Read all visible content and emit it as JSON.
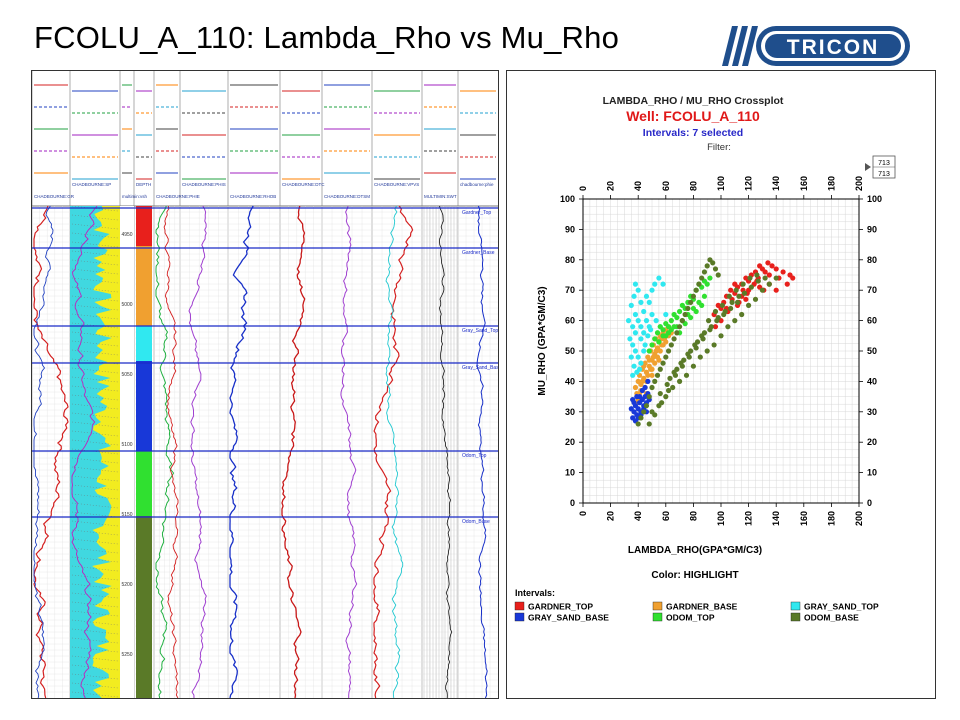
{
  "slide": {
    "title": "FCOLU_A_110: Lambda_Rho vs Mu_Rho",
    "logo_text": "TRICON"
  },
  "well_log": {
    "track_headers": [
      "CHADBOURNE:GR",
      "CHADBOURNE:SP",
      "multimin:vsh",
      "DEPTH",
      "CHADBOURNE:PHIE",
      "CHADBOURNE:PHIS",
      "CHADBOURNE:RHOB",
      "CHADBOURNE:DTC",
      "CHADBOURNE:DTSM",
      "CHADBOURNE:VPVS",
      "MULTIMIN:SWT",
      "chadbourne:phie"
    ],
    "depth_labels": [
      "4950",
      "5000",
      "5050",
      "5100",
      "5150",
      "5200",
      "5250"
    ],
    "tops": [
      {
        "name": "Gardner_Top"
      },
      {
        "name": "Gardner_Base"
      },
      {
        "name": "Gray_Sand_Top"
      },
      {
        "name": "Gray_Sand_Base"
      },
      {
        "name": "Odom_Top"
      },
      {
        "name": "Odom_Base"
      }
    ]
  },
  "crossplot": {
    "header_title": "LAMBDA_RHO / MU_RHO Crossplot",
    "well_label": "Well: FCOLU_A_110",
    "intervals_label": "Intervals: 7 selected",
    "filter_label": "Filter:",
    "zone_box": [
      "713",
      "713"
    ],
    "color_label": "Color: HIGHLIGHT",
    "legend_title": "Intervals:",
    "colors": {
      "GARDNER_TOP": "#e8201c",
      "GARDNER_BASE": "#f0a030",
      "GRAY_SAND_TOP": "#30e8f0",
      "GRAY_SAND_BASE": "#1838d8",
      "ODOM_TOP": "#30e030",
      "ODOM_BASE": "#5a7a28",
      "title_red": "#e01818",
      "intervals_blue": "#2828c8"
    }
  },
  "chart_data": {
    "type": "scatter",
    "title": "LAMBDA_RHO / MU_RHO Crossplot",
    "xlabel": "LAMBDA_RHO(GPA*GM/C3)",
    "ylabel": "MU_RHO (GPA*GM/C3)",
    "xlim": [
      0,
      200
    ],
    "ylim": [
      0,
      100
    ],
    "x_ticks": [
      0,
      20,
      40,
      60,
      80,
      100,
      120,
      140,
      160,
      180,
      200
    ],
    "y_ticks": [
      0,
      10,
      20,
      30,
      40,
      50,
      60,
      70,
      80,
      90,
      100
    ],
    "grid": true,
    "legend_position": "bottom",
    "series": [
      {
        "name": "GARDNER_TOP",
        "points": [
          [
            95,
            62
          ],
          [
            98,
            65
          ],
          [
            100,
            64
          ],
          [
            102,
            66
          ],
          [
            104,
            68
          ],
          [
            105,
            63
          ],
          [
            107,
            70
          ],
          [
            108,
            67
          ],
          [
            110,
            69
          ],
          [
            112,
            71
          ],
          [
            113,
            66
          ],
          [
            115,
            72
          ],
          [
            116,
            70
          ],
          [
            118,
            74
          ],
          [
            119,
            69
          ],
          [
            120,
            73
          ],
          [
            122,
            75
          ],
          [
            124,
            72
          ],
          [
            125,
            76
          ],
          [
            127,
            74
          ],
          [
            128,
            78
          ],
          [
            130,
            77
          ],
          [
            132,
            76
          ],
          [
            134,
            79
          ],
          [
            135,
            75
          ],
          [
            137,
            78
          ],
          [
            140,
            77
          ],
          [
            142,
            74
          ],
          [
            145,
            76
          ],
          [
            148,
            72
          ],
          [
            150,
            75
          ],
          [
            152,
            74
          ],
          [
            110,
            72
          ],
          [
            115,
            68
          ],
          [
            120,
            70
          ],
          [
            126,
            73
          ],
          [
            131,
            70
          ],
          [
            104,
            64
          ],
          [
            100,
            60
          ],
          [
            96,
            58
          ],
          [
            112,
            65
          ],
          [
            118,
            67
          ],
          [
            135,
            72
          ],
          [
            140,
            70
          ],
          [
            128,
            71
          ]
        ]
      },
      {
        "name": "GARDNER_BASE",
        "points": [
          [
            38,
            38
          ],
          [
            39,
            36
          ],
          [
            40,
            40
          ],
          [
            41,
            42
          ],
          [
            42,
            37
          ],
          [
            43,
            44
          ],
          [
            44,
            41
          ],
          [
            45,
            46
          ],
          [
            46,
            43
          ],
          [
            47,
            48
          ],
          [
            48,
            45
          ],
          [
            49,
            50
          ],
          [
            50,
            47
          ],
          [
            51,
            52
          ],
          [
            52,
            49
          ],
          [
            53,
            54
          ],
          [
            54,
            51
          ],
          [
            55,
            53
          ],
          [
            56,
            55
          ],
          [
            57,
            52
          ],
          [
            58,
            56
          ],
          [
            59,
            54
          ],
          [
            60,
            57
          ],
          [
            61,
            55
          ],
          [
            62,
            58
          ],
          [
            40,
            34
          ],
          [
            42,
            39
          ],
          [
            44,
            45
          ],
          [
            46,
            40
          ],
          [
            48,
            47
          ],
          [
            50,
            44
          ],
          [
            52,
            46
          ],
          [
            54,
            48
          ],
          [
            56,
            50
          ],
          [
            58,
            52
          ],
          [
            45,
            38
          ],
          [
            47,
            42
          ],
          [
            49,
            44
          ],
          [
            51,
            48
          ],
          [
            53,
            50
          ],
          [
            55,
            47
          ],
          [
            57,
            54
          ],
          [
            41,
            36
          ],
          [
            43,
            40
          ],
          [
            39,
            33
          ],
          [
            60,
            53
          ],
          [
            62,
            55
          ],
          [
            64,
            56
          ],
          [
            50,
            42
          ],
          [
            46,
            36
          ]
        ]
      },
      {
        "name": "GRAY_SAND_TOP",
        "points": [
          [
            35,
            65
          ],
          [
            37,
            68
          ],
          [
            38,
            72
          ],
          [
            40,
            70
          ],
          [
            42,
            66
          ],
          [
            44,
            63
          ],
          [
            46,
            68
          ],
          [
            48,
            66
          ],
          [
            50,
            70
          ],
          [
            52,
            72
          ],
          [
            55,
            74
          ],
          [
            58,
            72
          ],
          [
            36,
            58
          ],
          [
            38,
            62
          ],
          [
            40,
            60
          ],
          [
            42,
            58
          ],
          [
            44,
            56
          ],
          [
            46,
            60
          ],
          [
            48,
            58
          ],
          [
            50,
            62
          ],
          [
            34,
            54
          ],
          [
            36,
            52
          ],
          [
            38,
            50
          ],
          [
            40,
            48
          ],
          [
            42,
            46
          ],
          [
            37,
            45
          ],
          [
            39,
            43
          ],
          [
            41,
            44
          ],
          [
            35,
            48
          ],
          [
            33,
            60
          ],
          [
            45,
            52
          ],
          [
            47,
            55
          ],
          [
            49,
            57
          ],
          [
            53,
            60
          ],
          [
            56,
            58
          ],
          [
            60,
            62
          ],
          [
            38,
            56
          ],
          [
            42,
            54
          ],
          [
            44,
            50
          ],
          [
            36,
            42
          ]
        ]
      },
      {
        "name": "GRAY_SAND_BASE",
        "points": [
          [
            36,
            28
          ],
          [
            37,
            30
          ],
          [
            38,
            32
          ],
          [
            39,
            29
          ],
          [
            40,
            31
          ],
          [
            41,
            33
          ],
          [
            42,
            30
          ],
          [
            43,
            34
          ],
          [
            44,
            32
          ],
          [
            45,
            35
          ],
          [
            46,
            33
          ],
          [
            47,
            36
          ],
          [
            38,
            27
          ],
          [
            40,
            28
          ],
          [
            42,
            29
          ],
          [
            44,
            31
          ],
          [
            46,
            30
          ],
          [
            48,
            34
          ],
          [
            37,
            33
          ],
          [
            39,
            35
          ],
          [
            41,
            35
          ],
          [
            43,
            37
          ],
          [
            45,
            38
          ],
          [
            47,
            40
          ],
          [
            35,
            31
          ],
          [
            36,
            34
          ]
        ]
      },
      {
        "name": "ODOM_TOP",
        "points": [
          [
            48,
            50
          ],
          [
            50,
            52
          ],
          [
            52,
            54
          ],
          [
            54,
            56
          ],
          [
            56,
            58
          ],
          [
            58,
            57
          ],
          [
            60,
            59
          ],
          [
            62,
            58
          ],
          [
            64,
            60
          ],
          [
            66,
            62
          ],
          [
            68,
            61
          ],
          [
            70,
            63
          ],
          [
            72,
            65
          ],
          [
            74,
            64
          ],
          [
            76,
            66
          ],
          [
            78,
            68
          ],
          [
            80,
            67
          ],
          [
            82,
            70
          ],
          [
            84,
            72
          ],
          [
            86,
            71
          ],
          [
            88,
            73
          ],
          [
            90,
            72
          ],
          [
            92,
            74
          ],
          [
            60,
            55
          ],
          [
            64,
            57
          ],
          [
            68,
            58
          ],
          [
            72,
            60
          ],
          [
            76,
            62
          ],
          [
            80,
            64
          ],
          [
            84,
            66
          ],
          [
            88,
            68
          ],
          [
            55,
            53
          ],
          [
            58,
            55
          ],
          [
            62,
            56
          ],
          [
            66,
            58
          ],
          [
            70,
            56
          ],
          [
            74,
            59
          ],
          [
            78,
            61
          ],
          [
            82,
            63
          ],
          [
            86,
            65
          ]
        ]
      },
      {
        "name": "ODOM_BASE",
        "points": [
          [
            40,
            26
          ],
          [
            42,
            28
          ],
          [
            44,
            30
          ],
          [
            46,
            32
          ],
          [
            48,
            35
          ],
          [
            50,
            38
          ],
          [
            52,
            40
          ],
          [
            54,
            42
          ],
          [
            56,
            44
          ],
          [
            58,
            46
          ],
          [
            60,
            48
          ],
          [
            62,
            50
          ],
          [
            64,
            52
          ],
          [
            66,
            54
          ],
          [
            68,
            56
          ],
          [
            70,
            58
          ],
          [
            72,
            60
          ],
          [
            74,
            62
          ],
          [
            76,
            64
          ],
          [
            78,
            66
          ],
          [
            80,
            68
          ],
          [
            82,
            70
          ],
          [
            84,
            72
          ],
          [
            86,
            74
          ],
          [
            88,
            76
          ],
          [
            90,
            78
          ],
          [
            92,
            80
          ],
          [
            94,
            79
          ],
          [
            96,
            77
          ],
          [
            98,
            75
          ],
          [
            50,
            30
          ],
          [
            55,
            32
          ],
          [
            60,
            35
          ],
          [
            65,
            38
          ],
          [
            70,
            40
          ],
          [
            75,
            42
          ],
          [
            80,
            45
          ],
          [
            85,
            48
          ],
          [
            90,
            50
          ],
          [
            95,
            52
          ],
          [
            100,
            55
          ],
          [
            105,
            58
          ],
          [
            110,
            60
          ],
          [
            115,
            62
          ],
          [
            120,
            65
          ],
          [
            125,
            67
          ],
          [
            130,
            70
          ],
          [
            135,
            72
          ],
          [
            140,
            74
          ],
          [
            63,
            41
          ],
          [
            68,
            44
          ],
          [
            73,
            47
          ],
          [
            78,
            50
          ],
          [
            83,
            53
          ],
          [
            88,
            56
          ],
          [
            93,
            58
          ],
          [
            98,
            61
          ],
          [
            103,
            63
          ],
          [
            108,
            66
          ],
          [
            113,
            68
          ],
          [
            56,
            36
          ],
          [
            61,
            39
          ],
          [
            66,
            43
          ],
          [
            71,
            46
          ],
          [
            76,
            49
          ],
          [
            81,
            52
          ],
          [
            86,
            55
          ],
          [
            91,
            60
          ],
          [
            96,
            63
          ],
          [
            101,
            65
          ],
          [
            106,
            68
          ],
          [
            111,
            70
          ],
          [
            116,
            72
          ],
          [
            121,
            74
          ],
          [
            126,
            75
          ],
          [
            48,
            26
          ],
          [
            52,
            29
          ],
          [
            57,
            33
          ],
          [
            62,
            37
          ],
          [
            67,
            42
          ],
          [
            72,
            45
          ],
          [
            77,
            48
          ],
          [
            82,
            51
          ],
          [
            87,
            54
          ],
          [
            92,
            57
          ],
          [
            97,
            60
          ],
          [
            102,
            62
          ],
          [
            107,
            64
          ],
          [
            112,
            66
          ],
          [
            117,
            69
          ],
          [
            122,
            71
          ],
          [
            127,
            73
          ],
          [
            132,
            74
          ]
        ]
      }
    ]
  }
}
